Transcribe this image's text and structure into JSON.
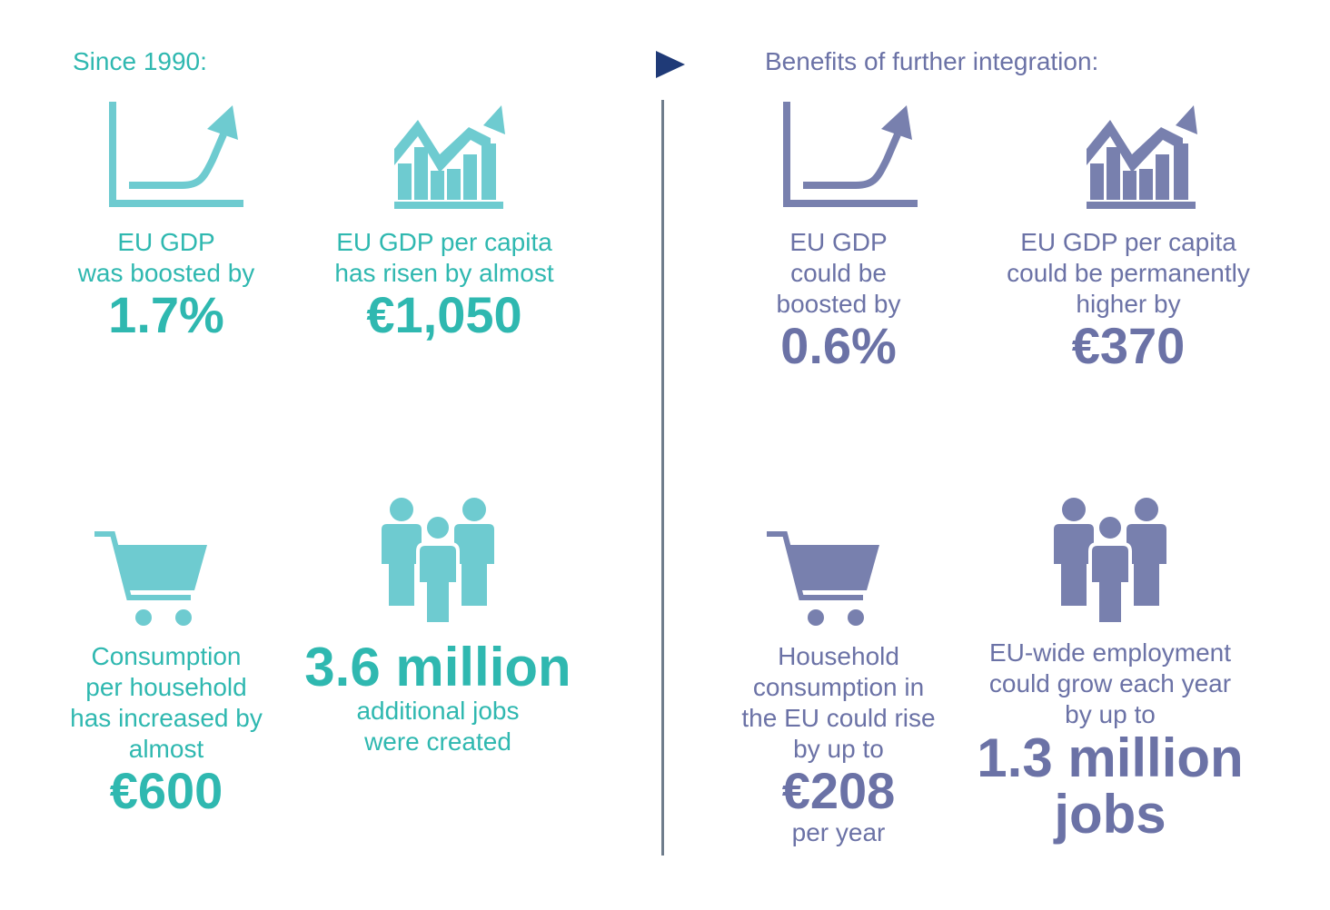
{
  "colors": {
    "teal": "#2fb8b0",
    "teal_icon": "#6ecbd0",
    "purple": "#6b72a6",
    "purple_icon": "#7880ae",
    "arrow": "#1f3a77",
    "divider": "#6f7d8c"
  },
  "left": {
    "heading": "Since 1990:",
    "gdp": {
      "icon": "growth-curve-icon",
      "line1": "EU GDP",
      "line2": "was boosted by",
      "value": "1.7%"
    },
    "gdp_capita": {
      "icon": "rising-bar-chart-icon",
      "line1": "EU GDP per capita",
      "line2": "has risen by almost",
      "value": "€1,050"
    },
    "consumption": {
      "icon": "shopping-cart-icon",
      "line1": "Consumption",
      "line2": "per household",
      "line3": "has increased by",
      "line4": "almost",
      "value": "€600"
    },
    "jobs": {
      "icon": "people-group-icon",
      "value": "3.6 million",
      "line1": "additional jobs",
      "line2": "were created"
    }
  },
  "right": {
    "heading": "Benefits of further integration:",
    "gdp": {
      "icon": "growth-curve-icon",
      "line1": "EU GDP",
      "line2": "could be",
      "line3": "boosted by",
      "value": "0.6%"
    },
    "gdp_capita": {
      "icon": "rising-bar-chart-icon",
      "line1": "EU GDP per capita",
      "line2": "could be permanently",
      "line3": "higher by",
      "value": "€370"
    },
    "consumption": {
      "icon": "shopping-cart-icon",
      "line1": "Household",
      "line2": "consumption in",
      "line3": "the EU could rise",
      "line4": "by up to",
      "value": "€208",
      "suffix": "per year"
    },
    "jobs": {
      "icon": "people-group-icon",
      "line1": "EU-wide employment",
      "line2": "could grow each year",
      "line3": "by up to",
      "value1": "1.3 million",
      "value2": "jobs"
    }
  }
}
